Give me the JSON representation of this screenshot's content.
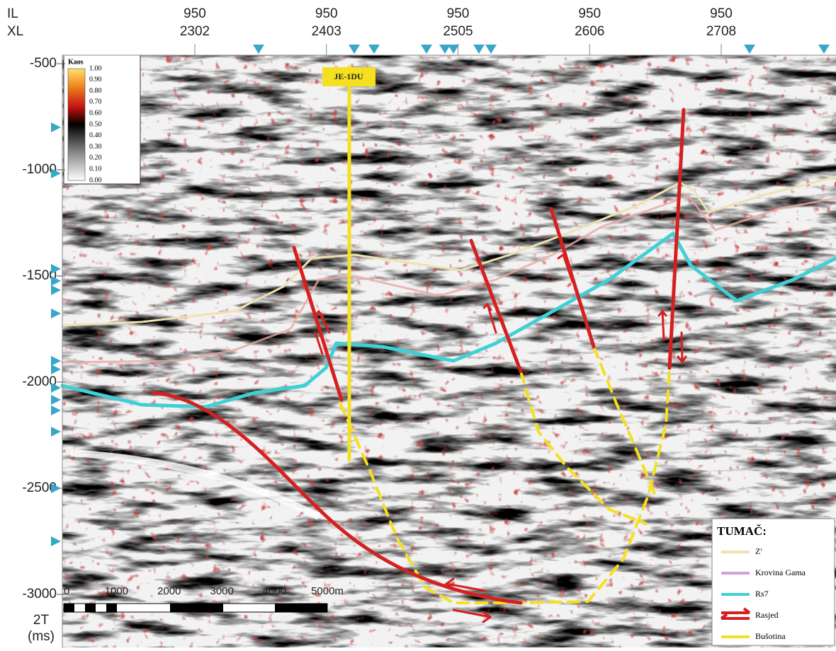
{
  "header": {
    "il_label": "IL",
    "xl_label": "XL"
  },
  "x_axis": {
    "ticks": [
      {
        "il": "950",
        "xl": "2302"
      },
      {
        "il": "950",
        "xl": "2403"
      },
      {
        "il": "950",
        "xl": "2505"
      },
      {
        "il": "950",
        "xl": "2606"
      },
      {
        "il": "950",
        "xl": "2708"
      }
    ]
  },
  "y_axis": {
    "ticks": [
      "-500",
      "-1000",
      "-1500",
      "-2000",
      "-2500",
      "-3000"
    ],
    "label": "2T",
    "unit": "(ms)"
  },
  "colorbar": {
    "title": "Kaos",
    "ticks": [
      "1.00",
      "0.90",
      "0.80",
      "0.70",
      "0.60",
      "0.50",
      "0.40",
      "0.30",
      "0.20",
      "0.10",
      "0.00"
    ]
  },
  "well": {
    "label": "JE-1DU"
  },
  "scale_bar": {
    "labels": [
      "0",
      "1000",
      "2000",
      "3000",
      "4000",
      "5000m"
    ]
  },
  "legend": {
    "title": "TUMAČ:",
    "items": [
      {
        "label": "Z'",
        "color": "#eee2b0"
      },
      {
        "label": "Krovina Gama",
        "color": "#d9a0d8"
      },
      {
        "label": "Rs7",
        "color": "#3fd0d6"
      },
      {
        "label": "Rasjed",
        "color": "#d42020"
      },
      {
        "label": "Bušotina",
        "color": "#f5e020"
      }
    ]
  }
}
